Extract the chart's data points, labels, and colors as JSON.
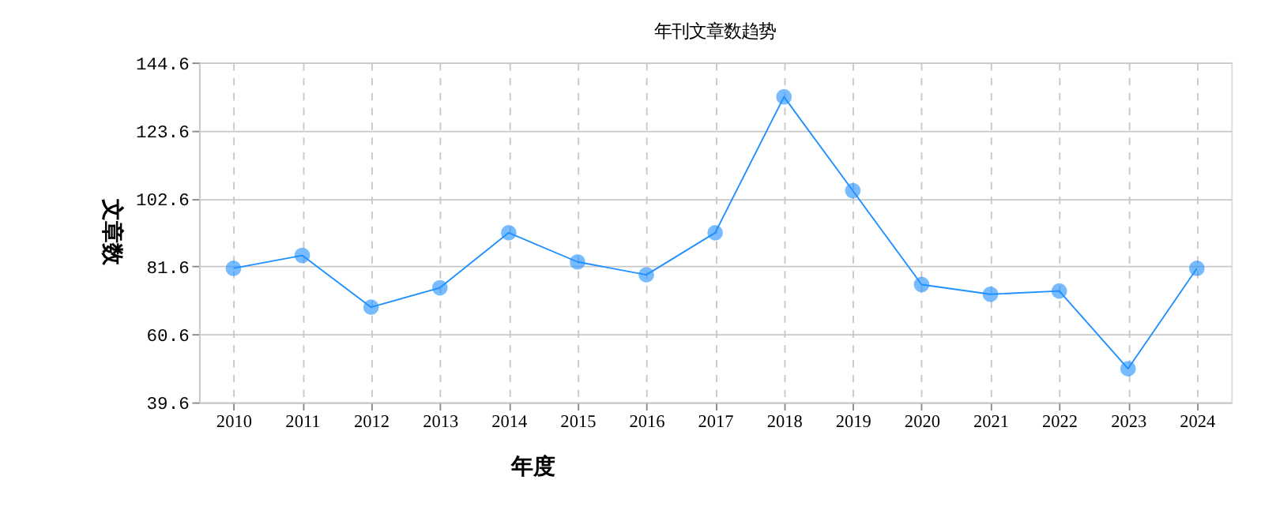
{
  "chart_data": {
    "type": "line",
    "title": "年刊文章数趋势",
    "xlabel": "年度",
    "ylabel": "文章数",
    "categories": [
      "2010",
      "2011",
      "2012",
      "2013",
      "2014",
      "2015",
      "2016",
      "2017",
      "2018",
      "2019",
      "2020",
      "2021",
      "2022",
      "2023",
      "2024"
    ],
    "series": [
      {
        "color": "#1e90ff",
        "values": [
          81,
          85,
          69,
          75,
          92,
          83,
          79,
          92,
          134,
          105,
          76,
          73,
          74,
          50,
          81
        ]
      }
    ],
    "ylim": [
      39.6,
      144.6
    ],
    "yticks": [
      39.6,
      60.6,
      81.6,
      102.6,
      123.6,
      144.6
    ],
    "grid": true,
    "marker": "circle",
    "line_style": "solid"
  }
}
